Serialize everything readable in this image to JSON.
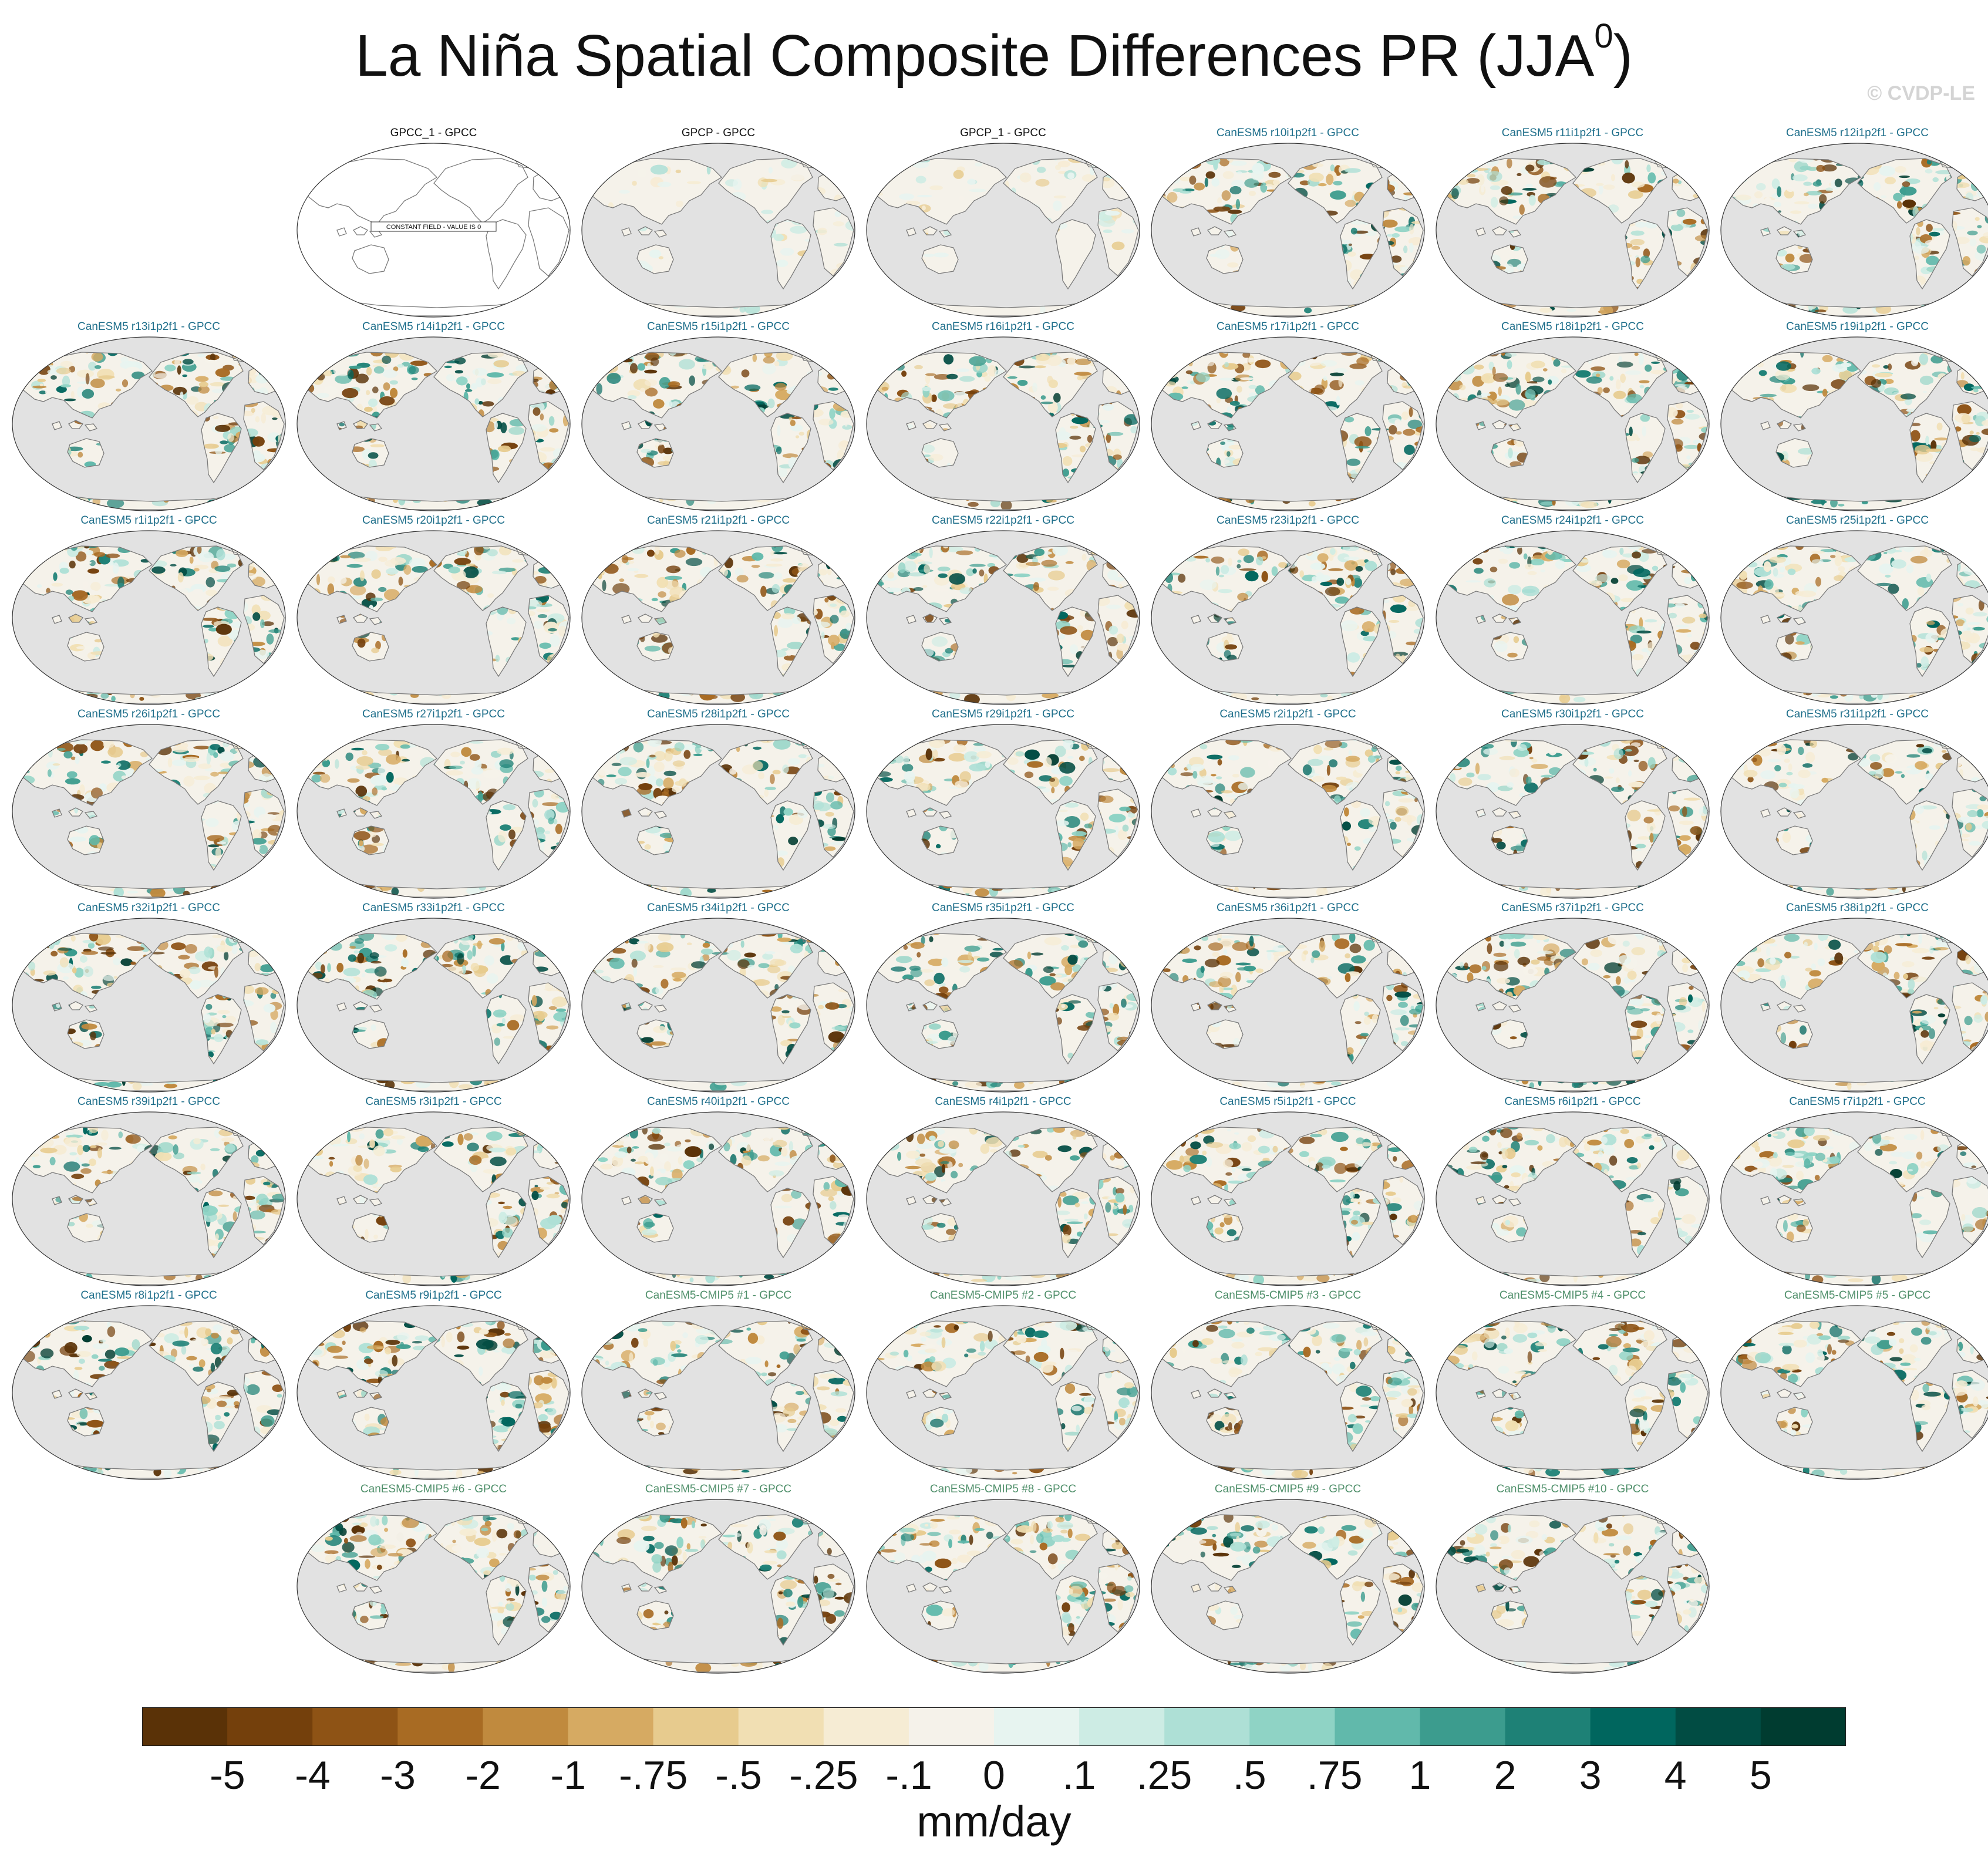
{
  "title": "La Niña Spatial Composite Differences PR (JJA",
  "title_sup": "0",
  "title_close": ")",
  "copyright": "© CVDP-LE",
  "colors": {
    "land_gray": "#e2e2e2",
    "coast": "#7a7a7a",
    "title_obs": "#111111",
    "title_le": "#1f6f8b",
    "title_cmip5": "#4f8f6a"
  },
  "chart_data": {
    "type": "heatmap",
    "title": "La Niña Spatial Composite Differences PR (JJA0)",
    "projection": "Robinson, centered on the Pacific",
    "units": "mm/day",
    "colorbar": {
      "labels": [
        "-5",
        "-4",
        "-3",
        "-2",
        "-1",
        "-.75",
        "-.5",
        "-.25",
        "-.1",
        "0",
        ".1",
        ".25",
        ".5",
        ".75",
        "1",
        "2",
        "3",
        "4",
        "5"
      ],
      "colors": [
        "#5a3207",
        "#74400c",
        "#8e5315",
        "#a86b23",
        "#c08a3e",
        "#d6aa62",
        "#e7cb8e",
        "#f1dfb3",
        "#f6ecd4",
        "#f5f2ea",
        "#e7f4f0",
        "#cdece4",
        "#aee0d6",
        "#8fd3c5",
        "#61b9ab",
        "#3c9c8e",
        "#1e8176",
        "#00665e",
        "#014c43",
        "#003c30"
      ],
      "units": "mm/day"
    },
    "panels": [
      {
        "title": "GPCC_1 - GPCC",
        "group": "obs",
        "annotation": "CONSTANT FIELD - VALUE IS 0"
      },
      {
        "title": "GPCP - GPCC",
        "group": "obs"
      },
      {
        "title": "GPCP_1 - GPCC",
        "group": "obs"
      },
      {
        "title": "CanESM5 r10i1p2f1 - GPCC",
        "group": "le"
      },
      {
        "title": "CanESM5 r11i1p2f1 - GPCC",
        "group": "le"
      },
      {
        "title": "CanESM5 r12i1p2f1 - GPCC",
        "group": "le"
      },
      {
        "title": "CanESM5 r13i1p2f1 - GPCC",
        "group": "le"
      },
      {
        "title": "CanESM5 r14i1p2f1 - GPCC",
        "group": "le"
      },
      {
        "title": "CanESM5 r15i1p2f1 - GPCC",
        "group": "le"
      },
      {
        "title": "CanESM5 r16i1p2f1 - GPCC",
        "group": "le"
      },
      {
        "title": "CanESM5 r17i1p2f1 - GPCC",
        "group": "le"
      },
      {
        "title": "CanESM5 r18i1p2f1 - GPCC",
        "group": "le"
      },
      {
        "title": "CanESM5 r19i1p2f1 - GPCC",
        "group": "le"
      },
      {
        "title": "CanESM5 r1i1p2f1 - GPCC",
        "group": "le"
      },
      {
        "title": "CanESM5 r20i1p2f1 - GPCC",
        "group": "le"
      },
      {
        "title": "CanESM5 r21i1p2f1 - GPCC",
        "group": "le"
      },
      {
        "title": "CanESM5 r22i1p2f1 - GPCC",
        "group": "le"
      },
      {
        "title": "CanESM5 r23i1p2f1 - GPCC",
        "group": "le"
      },
      {
        "title": "CanESM5 r24i1p2f1 - GPCC",
        "group": "le"
      },
      {
        "title": "CanESM5 r25i1p2f1 - GPCC",
        "group": "le"
      },
      {
        "title": "CanESM5 r26i1p2f1 - GPCC",
        "group": "le"
      },
      {
        "title": "CanESM5 r27i1p2f1 - GPCC",
        "group": "le"
      },
      {
        "title": "CanESM5 r28i1p2f1 - GPCC",
        "group": "le"
      },
      {
        "title": "CanESM5 r29i1p2f1 - GPCC",
        "group": "le"
      },
      {
        "title": "CanESM5 r2i1p2f1 - GPCC",
        "group": "le"
      },
      {
        "title": "CanESM5 r30i1p2f1 - GPCC",
        "group": "le"
      },
      {
        "title": "CanESM5 r31i1p2f1 - GPCC",
        "group": "le"
      },
      {
        "title": "CanESM5 r32i1p2f1 - GPCC",
        "group": "le"
      },
      {
        "title": "CanESM5 r33i1p2f1 - GPCC",
        "group": "le"
      },
      {
        "title": "CanESM5 r34i1p2f1 - GPCC",
        "group": "le"
      },
      {
        "title": "CanESM5 r35i1p2f1 - GPCC",
        "group": "le"
      },
      {
        "title": "CanESM5 r36i1p2f1 - GPCC",
        "group": "le"
      },
      {
        "title": "CanESM5 r37i1p2f1 - GPCC",
        "group": "le"
      },
      {
        "title": "CanESM5 r38i1p2f1 - GPCC",
        "group": "le"
      },
      {
        "title": "CanESM5 r39i1p2f1 - GPCC",
        "group": "le"
      },
      {
        "title": "CanESM5 r3i1p2f1 - GPCC",
        "group": "le"
      },
      {
        "title": "CanESM5 r40i1p2f1 - GPCC",
        "group": "le"
      },
      {
        "title": "CanESM5 r4i1p2f1 - GPCC",
        "group": "le"
      },
      {
        "title": "CanESM5 r5i1p2f1 - GPCC",
        "group": "le"
      },
      {
        "title": "CanESM5 r6i1p2f1 - GPCC",
        "group": "le"
      },
      {
        "title": "CanESM5 r7i1p2f1 - GPCC",
        "group": "le"
      },
      {
        "title": "CanESM5 r8i1p2f1 - GPCC",
        "group": "le"
      },
      {
        "title": "CanESM5 r9i1p2f1 - GPCC",
        "group": "le"
      },
      {
        "title": "CanESM5-CMIP5 #1 - GPCC",
        "group": "cmip5"
      },
      {
        "title": "CanESM5-CMIP5 #2 - GPCC",
        "group": "cmip5"
      },
      {
        "title": "CanESM5-CMIP5 #3 - GPCC",
        "group": "cmip5"
      },
      {
        "title": "CanESM5-CMIP5 #4 - GPCC",
        "group": "cmip5"
      },
      {
        "title": "CanESM5-CMIP5 #5 - GPCC",
        "group": "cmip5"
      },
      {
        "title": "CanESM5-CMIP5 #6 - GPCC",
        "group": "cmip5"
      },
      {
        "title": "CanESM5-CMIP5 #7 - GPCC",
        "group": "cmip5"
      },
      {
        "title": "CanESM5-CMIP5 #8 - GPCC",
        "group": "cmip5"
      },
      {
        "title": "CanESM5-CMIP5 #9 - GPCC",
        "group": "cmip5"
      },
      {
        "title": "CanESM5-CMIP5 #10 - GPCC",
        "group": "cmip5"
      }
    ]
  }
}
